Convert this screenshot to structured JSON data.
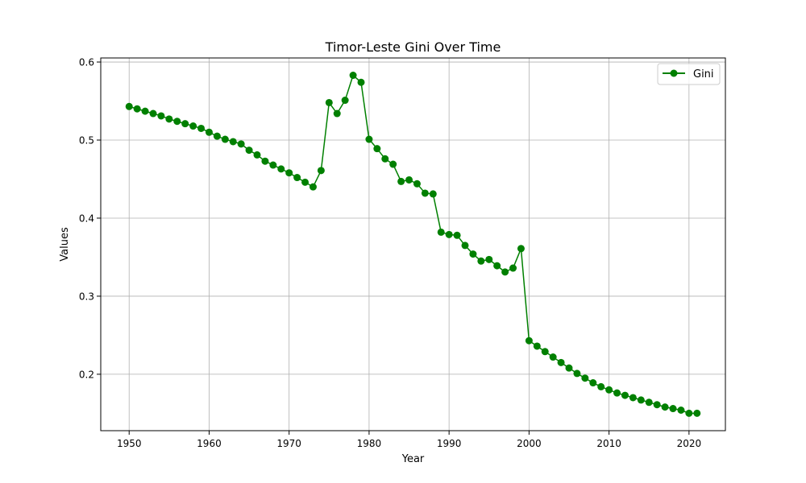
{
  "chart_data": {
    "type": "line",
    "title": "Timor-Leste Gini Over Time",
    "xlabel": "Year",
    "ylabel": "Values",
    "xlim": [
      1946.45,
      2024.55
    ],
    "ylim": [
      0.1277,
      0.6052
    ],
    "xticks": [
      1950,
      1960,
      1970,
      1980,
      1990,
      2000,
      2010,
      2020
    ],
    "yticks": [
      0.2,
      0.3,
      0.4,
      0.5,
      0.6
    ],
    "grid": true,
    "legend_position": "top-right",
    "series": [
      {
        "name": "Gini",
        "color": "#008000",
        "marker": "circle",
        "x": [
          1950,
          1951,
          1952,
          1953,
          1954,
          1955,
          1956,
          1957,
          1958,
          1959,
          1960,
          1961,
          1962,
          1963,
          1964,
          1965,
          1966,
          1967,
          1968,
          1969,
          1970,
          1971,
          1972,
          1973,
          1974,
          1975,
          1976,
          1977,
          1978,
          1979,
          1980,
          1981,
          1982,
          1983,
          1984,
          1985,
          1986,
          1987,
          1988,
          1989,
          1990,
          1991,
          1992,
          1993,
          1994,
          1995,
          1996,
          1997,
          1998,
          1999,
          2000,
          2001,
          2002,
          2003,
          2004,
          2005,
          2006,
          2007,
          2008,
          2009,
          2010,
          2011,
          2012,
          2013,
          2014,
          2015,
          2016,
          2017,
          2018,
          2019,
          2020,
          2021
        ],
        "values": [
          0.543,
          0.54,
          0.537,
          0.534,
          0.531,
          0.527,
          0.524,
          0.521,
          0.518,
          0.515,
          0.51,
          0.505,
          0.501,
          0.498,
          0.495,
          0.487,
          0.481,
          0.473,
          0.468,
          0.463,
          0.458,
          0.452,
          0.446,
          0.44,
          0.461,
          0.548,
          0.534,
          0.551,
          0.583,
          0.574,
          0.501,
          0.489,
          0.476,
          0.469,
          0.447,
          0.449,
          0.444,
          0.432,
          0.431,
          0.382,
          0.379,
          0.378,
          0.365,
          0.354,
          0.345,
          0.347,
          0.339,
          0.331,
          0.336,
          0.361,
          0.243,
          0.236,
          0.229,
          0.222,
          0.215,
          0.208,
          0.201,
          0.195,
          0.189,
          0.184,
          0.18,
          0.176,
          0.173,
          0.17,
          0.167,
          0.164,
          0.161,
          0.158,
          0.156,
          0.154,
          0.15,
          0.15
        ]
      }
    ]
  }
}
